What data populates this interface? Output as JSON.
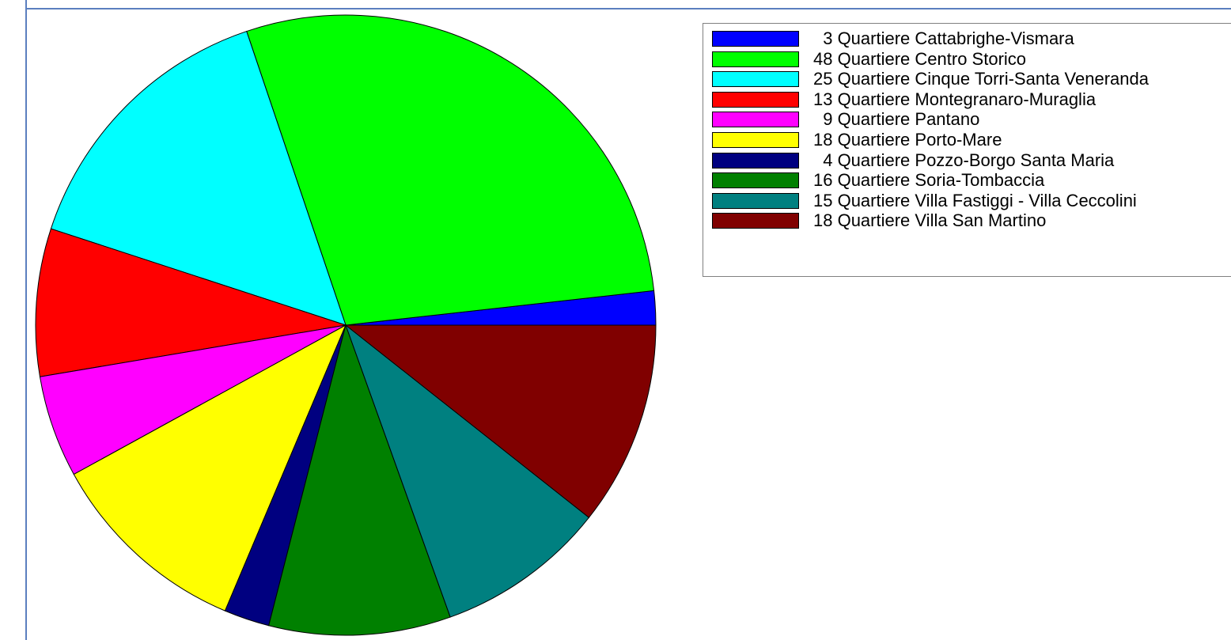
{
  "chart_data": {
    "type": "pie",
    "slices": [
      {
        "label": "Quartiere Cattabrighe-Vismara",
        "value": 3,
        "color": "#0000ff",
        "legend_text": "  3 Quartiere Cattabrighe-Vismara"
      },
      {
        "label": "Quartiere Centro Storico",
        "value": 48,
        "color": "#00ff00",
        "legend_text": "48 Quartiere Centro Storico"
      },
      {
        "label": "Quartiere Cinque Torri-Santa Veneranda",
        "value": 25,
        "color": "#00ffff",
        "legend_text": "25 Quartiere Cinque Torri-Santa Veneranda"
      },
      {
        "label": "Quartiere Montegranaro-Muraglia",
        "value": 13,
        "color": "#ff0000",
        "legend_text": "13 Quartiere Montegranaro-Muraglia"
      },
      {
        "label": "Quartiere Pantano",
        "value": 9,
        "color": "#ff00ff",
        "legend_text": "  9 Quartiere Pantano"
      },
      {
        "label": "Quartiere Porto-Mare",
        "value": 18,
        "color": "#ffff00",
        "legend_text": "18 Quartiere Porto-Mare"
      },
      {
        "label": "Quartiere Pozzo-Borgo Santa Maria",
        "value": 4,
        "color": "#000080",
        "legend_text": "  4 Quartiere Pozzo-Borgo Santa Maria"
      },
      {
        "label": "Quartiere Soria-Tombaccia",
        "value": 16,
        "color": "#008000",
        "legend_text": "16 Quartiere Soria-Tombaccia"
      },
      {
        "label": "Quartiere Villa Fastiggi - Villa Ceccolini",
        "value": 15,
        "color": "#008080",
        "legend_text": "15 Quartiere Villa Fastiggi - Villa Ceccolini"
      },
      {
        "label": "Quartiere Villa San Martino",
        "value": 18,
        "color": "#800000",
        "legend_text": "18 Quartiere Villa San Martino"
      }
    ],
    "start_direction": "east",
    "direction": "counterclockwise",
    "legend_position": "top-right"
  }
}
